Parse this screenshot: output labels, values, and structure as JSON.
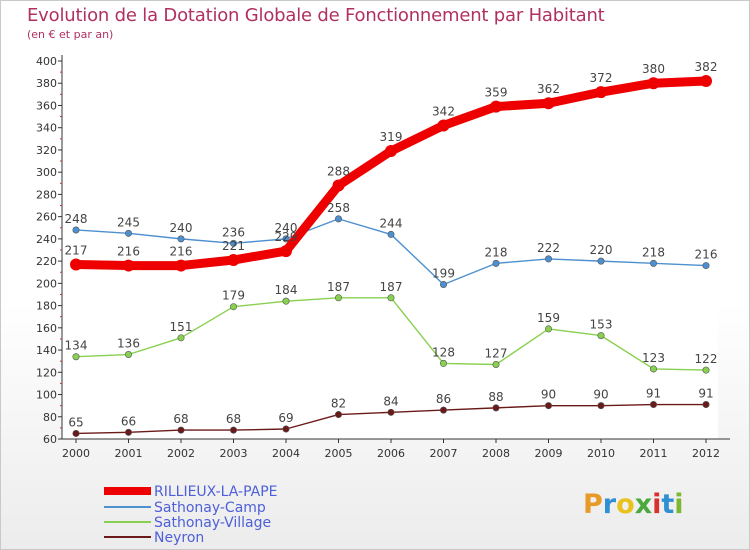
{
  "title": "Evolution de la Dotation Globale de Fonctionnement par Habitant",
  "subtitle": "(en € et par an)",
  "logo": "Proxiti",
  "chart_data": {
    "type": "line",
    "x": [
      "2000",
      "2001",
      "2002",
      "2003",
      "2004",
      "2005",
      "2006",
      "2007",
      "2008",
      "2009",
      "2010",
      "2011",
      "2012"
    ],
    "ylim": [
      60,
      400
    ],
    "yticks": [
      60,
      80,
      100,
      120,
      140,
      160,
      180,
      200,
      220,
      240,
      260,
      280,
      300,
      320,
      340,
      360,
      380,
      400
    ],
    "grid": false,
    "legend_position": "bottom-left",
    "series": [
      {
        "name": "RILLIEUX-LA-PAPE",
        "color": "#ee0000",
        "values": [
          217,
          216,
          216,
          221,
          229,
          288,
          319,
          342,
          359,
          362,
          372,
          380,
          382
        ],
        "labels": [
          "217",
          "216",
          "216",
          "221",
          "229",
          "288",
          "319",
          "342",
          "359",
          "362",
          "372",
          "380",
          "382"
        ]
      },
      {
        "name": "Sathonay-Camp",
        "color": "#4d90cf",
        "values": [
          248,
          245,
          240,
          236,
          240,
          258,
          244,
          199,
          218,
          222,
          220,
          218,
          216
        ],
        "labels": [
          "248",
          "245",
          "240",
          "236",
          "240",
          "258",
          "244",
          "199",
          "218",
          "222",
          "220",
          "218",
          "216"
        ]
      },
      {
        "name": "Sathonay-Village",
        "color": "#88d04f",
        "values": [
          134,
          136,
          151,
          179,
          184,
          187,
          187,
          128,
          127,
          159,
          153,
          123,
          122
        ],
        "labels": [
          "134",
          "136",
          "151",
          "179",
          "184",
          "187",
          "187",
          "128",
          "127",
          "159",
          "153",
          "123",
          "122"
        ]
      },
      {
        "name": "Neyron",
        "color": "#6b1a1a",
        "values": [
          65,
          66,
          68,
          68,
          69,
          82,
          84,
          86,
          88,
          90,
          90,
          91,
          91
        ],
        "labels": [
          "65",
          "66",
          "68",
          "68",
          "69",
          "82",
          "84",
          "86",
          "88",
          "90",
          "90",
          "91",
          "91"
        ]
      }
    ]
  }
}
